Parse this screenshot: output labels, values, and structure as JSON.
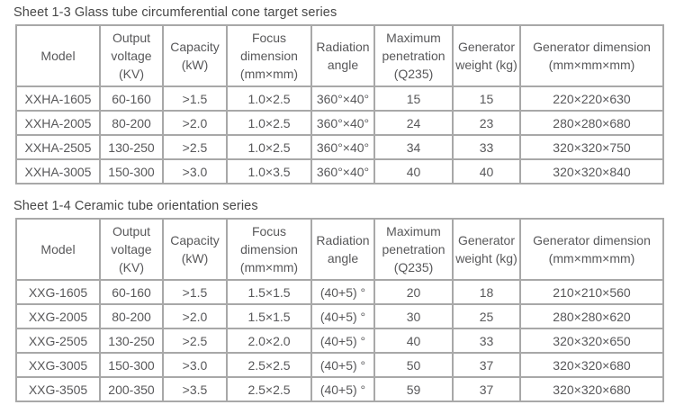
{
  "colors": {
    "border": "#a8a8a8",
    "title_text": "#474747",
    "cell_text": "#58585a",
    "background": "#ffffff"
  },
  "tables": [
    {
      "title": "Sheet 1-3 Glass tube circumferential cone target series",
      "headers": [
        "Model",
        "Output voltage (KV)",
        "Capacity (kW)",
        "Focus dimension (mm×mm)",
        "Radiation angle",
        "Maximum penetration (Q235)",
        "Generator weight (kg)",
        "Generator dimension (mm×mm×mm)"
      ],
      "rows": [
        [
          "XXHA-1605",
          "60-160",
          ">1.5",
          "1.0×2.5",
          "360°×40°",
          "15",
          "15",
          "220×220×630"
        ],
        [
          "XXHA-2005",
          "80-200",
          ">2.0",
          "1.0×2.5",
          "360°×40°",
          "24",
          "23",
          "280×280×680"
        ],
        [
          "XXHA-2505",
          "130-250",
          ">2.5",
          "1.0×2.5",
          "360°×40°",
          "34",
          "33",
          "320×320×750"
        ],
        [
          "XXHA-3005",
          "150-300",
          ">3.0",
          "1.0×3.5",
          "360°×40°",
          "40",
          "40",
          "320×320×840"
        ]
      ]
    },
    {
      "title": "Sheet 1-4 Ceramic tube orientation series",
      "headers": [
        "Model",
        "Output voltage (KV)",
        "Capacity (kW)",
        "Focus dimension (mm×mm)",
        "Radiation angle",
        "Maximum penetration (Q235)",
        "Generator weight (kg)",
        "Generator dimension (mm×mm×mm)"
      ],
      "rows": [
        [
          "XXG-1605",
          "60-160",
          ">1.5",
          "1.5×1.5",
          "(40+5) °",
          "20",
          "18",
          "210×210×560"
        ],
        [
          "XXG-2005",
          "80-200",
          ">2.0",
          "1.5×1.5",
          "(40+5) °",
          "30",
          "25",
          "280×280×620"
        ],
        [
          "XXG-2505",
          "130-250",
          ">2.5",
          "2.0×2.0",
          "(40+5) °",
          "40",
          "33",
          "320×320×650"
        ],
        [
          "XXG-3005",
          "150-300",
          ">3.0",
          "2.5×2.5",
          "(40+5) °",
          "50",
          "37",
          "320×320×680"
        ],
        [
          "XXG-3505",
          "200-350",
          ">3.5",
          "2.5×2.5",
          "(40+5) °",
          "59",
          "37",
          "320×320×680"
        ]
      ]
    }
  ]
}
